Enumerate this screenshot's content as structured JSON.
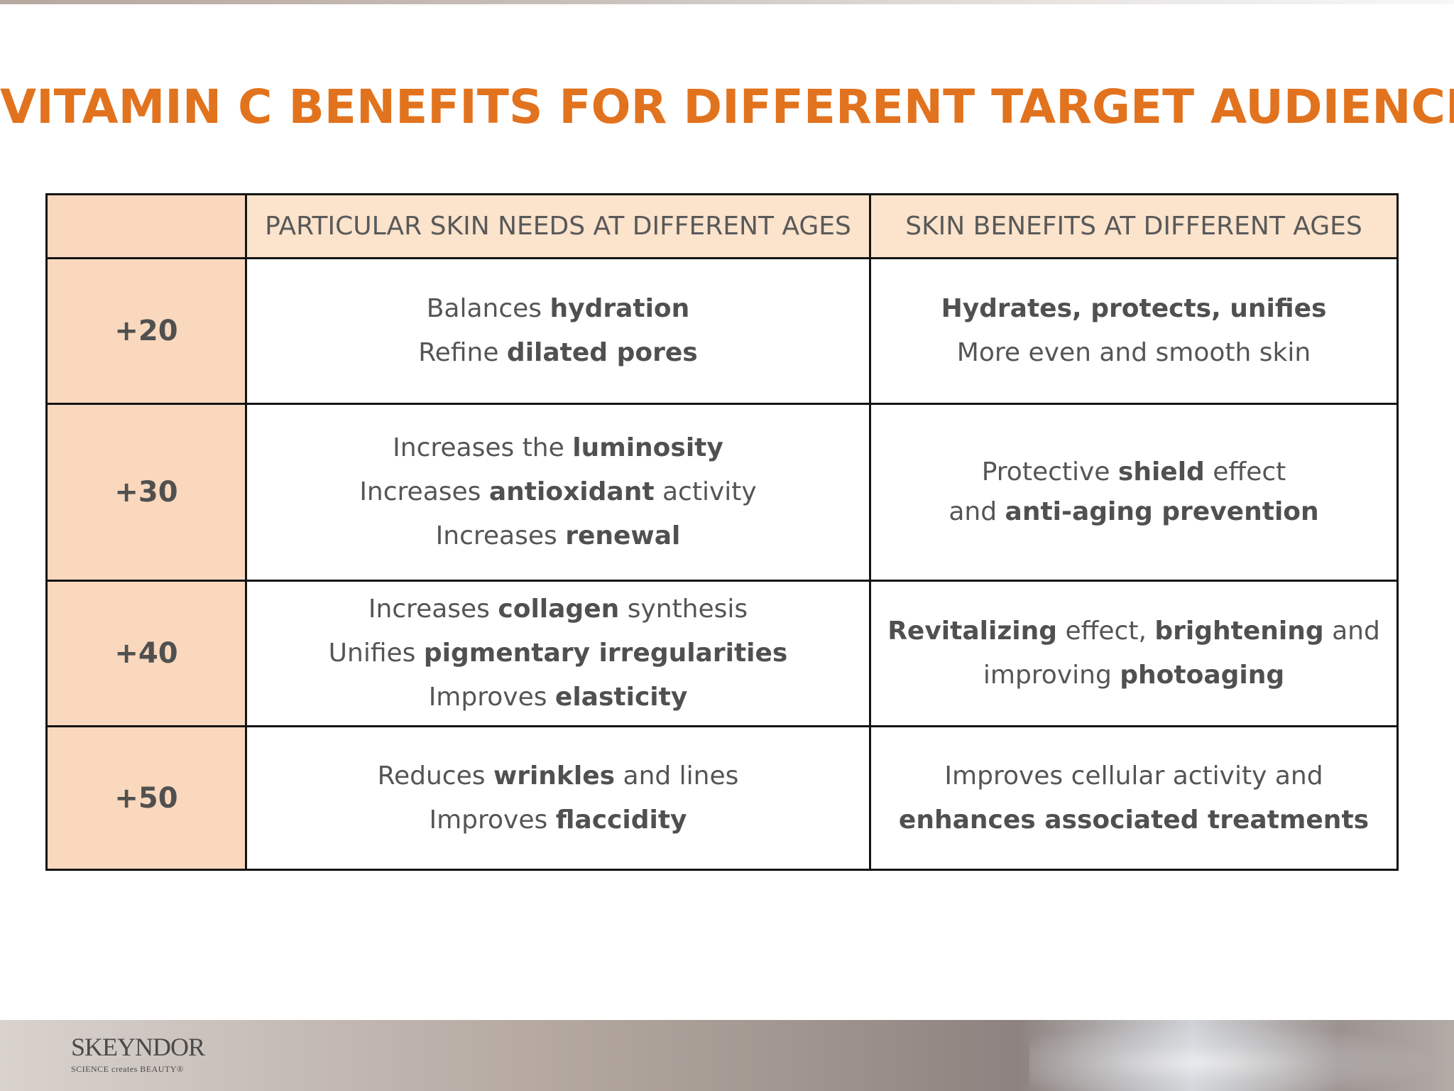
{
  "title": "VITAMIN C BENEFITS FOR DIFFERENT TARGET AUDIENCE",
  "table": {
    "headers": [
      "",
      "PARTICULAR SKIN NEEDS AT DIFFERENT AGES",
      "SKIN BENEFITS AT DIFFERENT AGES"
    ],
    "rows": [
      {
        "age": "+20",
        "needs": [
          [
            {
              "t": "Balances ",
              "b": false
            },
            {
              "t": "hydration",
              "b": true
            }
          ],
          [
            {
              "t": "Refine  ",
              "b": false
            },
            {
              "t": "dilated pores",
              "b": true
            }
          ]
        ],
        "benefits": [
          [
            {
              "t": "Hydrates, protects, unifies",
              "b": true
            }
          ],
          [
            {
              "t": "More even and smooth skin",
              "b": false
            }
          ]
        ]
      },
      {
        "age": "+30",
        "needs": [
          [
            {
              "t": "Increases the ",
              "b": false
            },
            {
              "t": "luminosity",
              "b": true
            }
          ],
          [
            {
              "t": "Increases ",
              "b": false
            },
            {
              "t": "antioxidant",
              "b": true
            },
            {
              "t": " activity",
              "b": false
            }
          ],
          [
            {
              "t": "Increases ",
              "b": false
            },
            {
              "t": "renewal",
              "b": true
            }
          ]
        ],
        "benefits": [
          [
            {
              "t": "Protective ",
              "b": false
            },
            {
              "t": "shield",
              "b": true
            },
            {
              "t": " effect",
              "b": false
            }
          ],
          [
            {
              "t": "and ",
              "b": false
            },
            {
              "t": "anti-aging prevention",
              "b": true
            }
          ]
        ]
      },
      {
        "age": "+40",
        "needs": [
          [
            {
              "t": "Increases ",
              "b": false
            },
            {
              "t": "collagen",
              "b": true
            },
            {
              "t": " synthesis",
              "b": false
            }
          ],
          [
            {
              "t": "Unifies ",
              "b": false
            },
            {
              "t": "pigmentary irregularities",
              "b": true
            }
          ],
          [
            {
              "t": "Improves ",
              "b": false
            },
            {
              "t": "elasticity",
              "b": true
            }
          ]
        ],
        "benefits": [
          [
            {
              "t": "Revitalizing",
              "b": true
            },
            {
              "t": " effect, ",
              "b": false
            },
            {
              "t": "brightening",
              "b": true
            },
            {
              "t": " and",
              "b": false
            }
          ],
          [
            {
              "t": "improving ",
              "b": false
            },
            {
              "t": "photoaging",
              "b": true
            }
          ]
        ]
      },
      {
        "age": "+50",
        "needs": [
          [
            {
              "t": "Reduces ",
              "b": false
            },
            {
              "t": "wrinkles",
              "b": true
            },
            {
              "t": " and lines",
              "b": false
            }
          ],
          [
            {
              "t": "Improves ",
              "b": false
            },
            {
              "t": "flaccidity",
              "b": true
            }
          ]
        ],
        "benefits": [
          [
            {
              "t": "Improves cellular activity and",
              "b": false
            }
          ],
          [
            {
              "t": "enhances associated treatments",
              "b": true
            }
          ]
        ]
      }
    ]
  },
  "logo": {
    "brand": "SKEYNDOR",
    "tagline": "SCIENCE creates BEAUTY®"
  },
  "colors": {
    "title": "#e2731e",
    "age_column": "#f9d8bd",
    "header_row": "#fbe3cc",
    "border": "#141414"
  }
}
